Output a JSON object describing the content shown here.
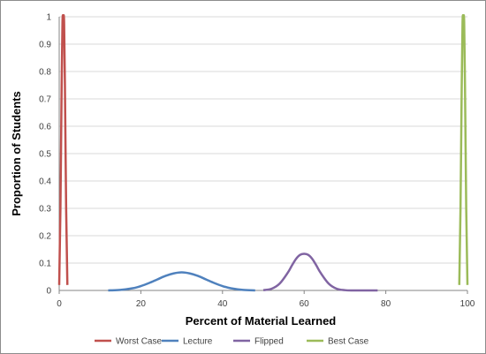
{
  "chart_data": {
    "type": "line",
    "title": "",
    "xlabel": "Percent of Material Learned",
    "ylabel": "Proportion of Students",
    "xlim": [
      0,
      100
    ],
    "ylim": [
      0,
      1
    ],
    "x_ticks": [
      "0",
      "20",
      "40",
      "60",
      "80",
      "100"
    ],
    "y_ticks": [
      "0",
      "0.1",
      "0.2",
      "0.3",
      "0.4",
      "0.5",
      "0.6",
      "0.7",
      "0.8",
      "0.9",
      "1"
    ],
    "grid": true,
    "legend_position": "bottom",
    "series": [
      {
        "name": "Worst Case",
        "color": "#c0504d",
        "x": [
          0.0,
          0.3,
          0.6,
          0.8,
          1.0,
          1.2,
          1.4,
          1.7,
          2.0
        ],
        "y": [
          0.02,
          0.3,
          0.75,
          0.98,
          1.0,
          0.98,
          0.75,
          0.3,
          0.02
        ]
      },
      {
        "name": "Lecture",
        "color": "#4f81bd",
        "x": [
          12,
          15,
          18,
          20,
          22,
          24,
          26,
          28,
          30,
          32,
          34,
          36,
          38,
          40,
          42,
          45,
          48
        ],
        "y": [
          0.0,
          0.002,
          0.008,
          0.016,
          0.027,
          0.04,
          0.053,
          0.062,
          0.066,
          0.062,
          0.053,
          0.04,
          0.027,
          0.016,
          0.008,
          0.002,
          0.0
        ]
      },
      {
        "name": "Flipped",
        "color": "#8064a2",
        "x": [
          50,
          52,
          54,
          56,
          57,
          58,
          59,
          60,
          61,
          62,
          63,
          64,
          66,
          68,
          70,
          72,
          75,
          78
        ],
        "y": [
          0.001,
          0.006,
          0.025,
          0.065,
          0.091,
          0.115,
          0.13,
          0.134,
          0.13,
          0.115,
          0.091,
          0.065,
          0.025,
          0.006,
          0.001,
          0.0,
          0.0,
          0.0
        ]
      },
      {
        "name": "Best Case",
        "color": "#9bbb59",
        "x": [
          98.0,
          98.3,
          98.6,
          98.8,
          99.0,
          99.2,
          99.4,
          99.7,
          100.0
        ],
        "y": [
          0.02,
          0.3,
          0.75,
          0.98,
          1.0,
          0.98,
          0.75,
          0.3,
          0.02
        ]
      }
    ]
  }
}
